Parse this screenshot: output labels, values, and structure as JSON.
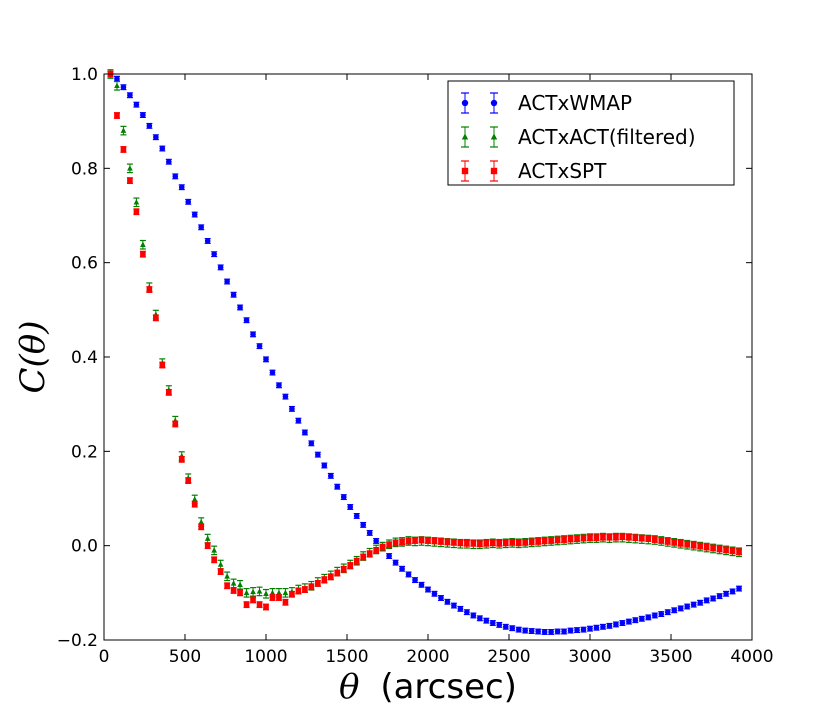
{
  "chart_data": {
    "type": "scatter",
    "title": "",
    "xlabel_symbol": "θ",
    "xlabel_unit": "(arcsec)",
    "ylabel": "C(θ)",
    "xlim": [
      0,
      4000
    ],
    "ylim": [
      -0.2,
      1.0
    ],
    "x_ticks": [
      0,
      500,
      1000,
      1500,
      2000,
      2500,
      3000,
      3500,
      4000
    ],
    "x_tick_labels": [
      "0",
      "500",
      "1000",
      "1500",
      "2000",
      "2500",
      "3000",
      "3500",
      "4000"
    ],
    "y_ticks": [
      -0.2,
      0.0,
      0.2,
      0.4,
      0.6,
      0.8,
      1.0
    ],
    "y_tick_labels": [
      "−0.2",
      "0.0",
      "0.2",
      "0.4",
      "0.6",
      "0.8",
      "1.0"
    ],
    "legend_position": "top-right",
    "series": [
      {
        "name": "ACTxWMAP",
        "marker": "circle",
        "color": "#0000ff",
        "x": [
          40,
          80,
          120,
          160,
          200,
          240,
          280,
          320,
          360,
          400,
          440,
          480,
          520,
          560,
          600,
          640,
          680,
          720,
          760,
          800,
          840,
          880,
          920,
          960,
          1000,
          1040,
          1080,
          1120,
          1160,
          1200,
          1240,
          1280,
          1320,
          1360,
          1400,
          1440,
          1480,
          1520,
          1560,
          1600,
          1640,
          1680,
          1720,
          1760,
          1800,
          1840,
          1880,
          1920,
          1960,
          2000,
          2040,
          2080,
          2120,
          2160,
          2200,
          2240,
          2280,
          2320,
          2360,
          2400,
          2440,
          2480,
          2520,
          2560,
          2600,
          2640,
          2680,
          2720,
          2760,
          2800,
          2840,
          2880,
          2920,
          2960,
          3000,
          3040,
          3080,
          3120,
          3160,
          3200,
          3240,
          3280,
          3320,
          3360,
          3400,
          3440,
          3480,
          3520,
          3560,
          3600,
          3640,
          3680,
          3720,
          3760,
          3800,
          3840,
          3880,
          3920
        ],
        "y": [
          1.0,
          0.99,
          0.972,
          0.955,
          0.935,
          0.913,
          0.89,
          0.866,
          0.842,
          0.814,
          0.783,
          0.76,
          0.729,
          0.702,
          0.675,
          0.646,
          0.618,
          0.59,
          0.56,
          0.532,
          0.505,
          0.478,
          0.448,
          0.423,
          0.395,
          0.367,
          0.34,
          0.316,
          0.29,
          0.265,
          0.24,
          0.217,
          0.193,
          0.17,
          0.148,
          0.125,
          0.103,
          0.082,
          0.063,
          0.044,
          0.027,
          0.01,
          -0.006,
          -0.022,
          -0.036,
          -0.049,
          -0.061,
          -0.073,
          -0.083,
          -0.093,
          -0.102,
          -0.111,
          -0.119,
          -0.127,
          -0.134,
          -0.141,
          -0.148,
          -0.154,
          -0.159,
          -0.164,
          -0.168,
          -0.172,
          -0.175,
          -0.178,
          -0.18,
          -0.181,
          -0.182,
          -0.183,
          -0.183,
          -0.182,
          -0.182,
          -0.18,
          -0.179,
          -0.178,
          -0.176,
          -0.174,
          -0.172,
          -0.17,
          -0.167,
          -0.164,
          -0.161,
          -0.158,
          -0.155,
          -0.152,
          -0.148,
          -0.145,
          -0.141,
          -0.137,
          -0.133,
          -0.129,
          -0.125,
          -0.121,
          -0.116,
          -0.112,
          -0.107,
          -0.102,
          -0.097,
          -0.091
        ],
        "err": 0.005
      },
      {
        "name": "ACTxACT(filtered)",
        "marker": "triangle",
        "color": "#008000",
        "x": [
          40,
          80,
          120,
          160,
          200,
          240,
          280,
          320,
          360,
          400,
          440,
          480,
          520,
          560,
          600,
          640,
          680,
          720,
          760,
          800,
          840,
          880,
          920,
          960,
          1000,
          1040,
          1080,
          1120,
          1160,
          1200,
          1240,
          1280,
          1320,
          1360,
          1400,
          1440,
          1480,
          1520,
          1560,
          1600,
          1640,
          1680,
          1720,
          1760,
          1800,
          1840,
          1880,
          1920,
          1960,
          2000,
          2040,
          2080,
          2120,
          2160,
          2200,
          2240,
          2280,
          2320,
          2360,
          2400,
          2440,
          2480,
          2520,
          2560,
          2600,
          2640,
          2680,
          2720,
          2760,
          2800,
          2840,
          2880,
          2920,
          2960,
          3000,
          3040,
          3080,
          3120,
          3160,
          3200,
          3240,
          3280,
          3320,
          3360,
          3400,
          3440,
          3480,
          3520,
          3560,
          3600,
          3640,
          3680,
          3720,
          3760,
          3800,
          3840,
          3880,
          3920
        ],
        "y": [
          1.0,
          0.975,
          0.88,
          0.8,
          0.728,
          0.638,
          0.548,
          0.49,
          0.387,
          0.33,
          0.265,
          0.19,
          0.143,
          0.098,
          0.05,
          0.015,
          -0.01,
          -0.04,
          -0.065,
          -0.08,
          -0.083,
          -0.1,
          -0.098,
          -0.097,
          -0.102,
          -0.1,
          -0.1,
          -0.1,
          -0.098,
          -0.093,
          -0.09,
          -0.085,
          -0.077,
          -0.07,
          -0.063,
          -0.055,
          -0.048,
          -0.04,
          -0.032,
          -0.022,
          -0.015,
          -0.008,
          -0.002,
          0.003,
          0.007,
          0.008,
          0.01,
          0.009,
          0.01,
          0.009,
          0.008,
          0.007,
          0.006,
          0.005,
          0.004,
          0.004,
          0.003,
          0.003,
          0.004,
          0.005,
          0.004,
          0.005,
          0.006,
          0.005,
          0.006,
          0.007,
          0.008,
          0.009,
          0.01,
          0.011,
          0.012,
          0.013,
          0.014,
          0.015,
          0.016,
          0.016,
          0.017,
          0.016,
          0.017,
          0.017,
          0.016,
          0.015,
          0.014,
          0.013,
          0.012,
          0.01,
          0.008,
          0.006,
          0.004,
          0.002,
          0.0,
          -0.002,
          -0.004,
          -0.006,
          -0.008,
          -0.01,
          -0.012,
          -0.014
        ],
        "err": 0.009
      },
      {
        "name": "ACTxSPT",
        "marker": "square",
        "color": "#ff0000",
        "x": [
          40,
          80,
          120,
          160,
          200,
          240,
          280,
          320,
          360,
          400,
          440,
          480,
          520,
          560,
          600,
          640,
          680,
          720,
          760,
          800,
          840,
          880,
          920,
          960,
          1000,
          1040,
          1080,
          1120,
          1160,
          1200,
          1240,
          1280,
          1320,
          1360,
          1400,
          1440,
          1480,
          1520,
          1560,
          1600,
          1640,
          1680,
          1720,
          1760,
          1800,
          1840,
          1880,
          1920,
          1960,
          2000,
          2040,
          2080,
          2120,
          2160,
          2200,
          2240,
          2280,
          2320,
          2360,
          2400,
          2440,
          2480,
          2520,
          2560,
          2600,
          2640,
          2680,
          2720,
          2760,
          2800,
          2840,
          2880,
          2920,
          2960,
          3000,
          3040,
          3080,
          3120,
          3160,
          3200,
          3240,
          3280,
          3320,
          3360,
          3400,
          3440,
          3480,
          3520,
          3560,
          3600,
          3640,
          3680,
          3720,
          3760,
          3800,
          3840,
          3880,
          3920
        ],
        "y": [
          1.0,
          0.912,
          0.84,
          0.774,
          0.708,
          0.618,
          0.543,
          0.483,
          0.383,
          0.325,
          0.258,
          0.183,
          0.138,
          0.088,
          0.04,
          0.0,
          -0.03,
          -0.055,
          -0.085,
          -0.095,
          -0.1,
          -0.125,
          -0.115,
          -0.125,
          -0.13,
          -0.11,
          -0.11,
          -0.12,
          -0.103,
          -0.096,
          -0.093,
          -0.087,
          -0.08,
          -0.072,
          -0.066,
          -0.058,
          -0.05,
          -0.042,
          -0.033,
          -0.024,
          -0.017,
          -0.01,
          -0.003,
          0.002,
          0.006,
          0.008,
          0.01,
          0.011,
          0.012,
          0.011,
          0.01,
          0.009,
          0.008,
          0.007,
          0.006,
          0.005,
          0.005,
          0.004,
          0.005,
          0.006,
          0.005,
          0.006,
          0.007,
          0.006,
          0.007,
          0.008,
          0.009,
          0.01,
          0.011,
          0.012,
          0.013,
          0.014,
          0.015,
          0.016,
          0.017,
          0.017,
          0.018,
          0.018,
          0.018,
          0.019,
          0.018,
          0.017,
          0.016,
          0.015,
          0.013,
          0.011,
          0.009,
          0.007,
          0.005,
          0.003,
          0.001,
          -0.001,
          -0.003,
          -0.005,
          -0.007,
          -0.009,
          -0.011,
          -0.013
        ],
        "err": 0.006
      }
    ]
  }
}
